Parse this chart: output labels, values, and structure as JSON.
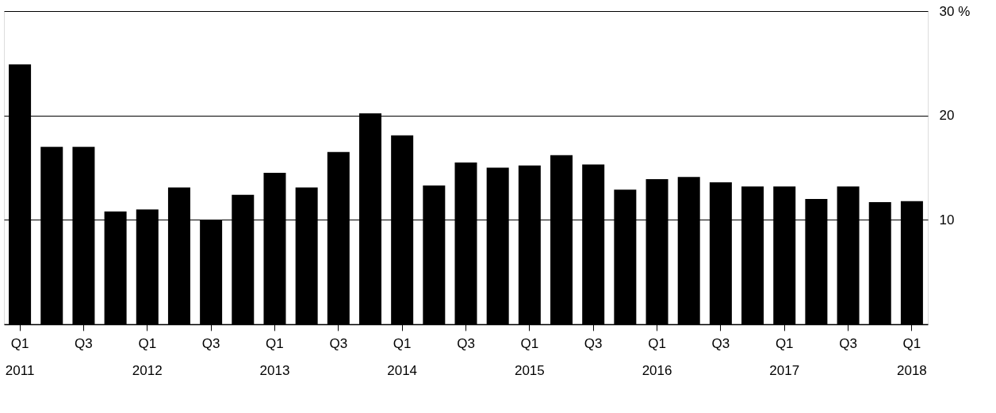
{
  "chart_data": {
    "type": "bar",
    "categories": [
      "Q1\n2011",
      null,
      "Q3",
      null,
      "Q1\n2012",
      null,
      "Q3",
      null,
      "Q1\n2013",
      null,
      "Q3",
      null,
      "Q1\n2014",
      null,
      "Q3",
      null,
      "Q1\n2015",
      null,
      "Q3",
      null,
      "Q1\n2016",
      null,
      "Q3",
      null,
      "Q1\n2017",
      null,
      "Q3",
      null,
      "Q1\n2018"
    ],
    "values": [
      24.9,
      17.0,
      17.0,
      10.8,
      11.0,
      13.1,
      10.0,
      12.4,
      14.5,
      13.1,
      16.5,
      20.2,
      18.1,
      13.3,
      15.5,
      15.0,
      15.2,
      16.2,
      15.3,
      12.9,
      13.9,
      14.1,
      13.6,
      13.2,
      13.2,
      12.0,
      13.2,
      11.7,
      11.8
    ],
    "color": "#000000",
    "ylim": [
      0,
      30
    ],
    "yticks": [
      10,
      20,
      {
        "value": 30,
        "label": "30 %"
      }
    ],
    "grid": "y"
  }
}
